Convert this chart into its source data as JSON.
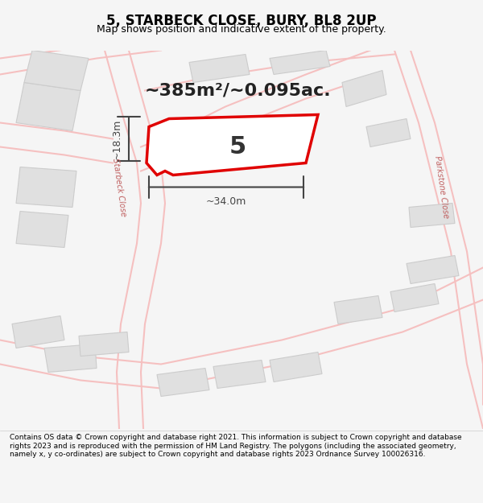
{
  "title": "5, STARBECK CLOSE, BURY, BL8 2UP",
  "subtitle": "Map shows position and indicative extent of the property.",
  "area_text": "~385m²/~0.095ac.",
  "plot_number": "5",
  "dimension_width": "~34.0m",
  "dimension_height": "~18.3m",
  "footer_text": "Contains OS data © Crown copyright and database right 2021. This information is subject to Crown copyright and database rights 2023 and is reproduced with the permission of HM Land Registry. The polygons (including the associated geometry, namely x, y co-ordinates) are subject to Crown copyright and database rights 2023 Ordnance Survey 100026316.",
  "bg_color": "#f5f5f5",
  "map_bg": "#f0f0f0",
  "road_color": "#f5c0c0",
  "building_color": "#e0e0e0",
  "building_edge": "#cccccc",
  "plot_color": "#ffffff",
  "plot_edge": "#e00000",
  "dim_color": "#444444",
  "road_label_color": "#c06060",
  "title_color": "#000000",
  "footer_color": "#000000"
}
